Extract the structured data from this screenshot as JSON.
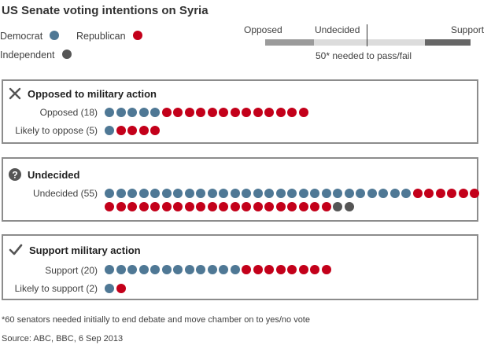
{
  "title": "US Senate voting intentions on Syria",
  "legend": [
    {
      "label": "Democrat",
      "color": "#4f7895"
    },
    {
      "label": "Republican",
      "color": "#c3001a"
    },
    {
      "label": "Independent",
      "color": "#555555"
    }
  ],
  "scale": {
    "opposed_label": "Opposed",
    "undecided_label": "Undecided",
    "support_label": "Support",
    "threshold_label": "50* needed to pass/fail",
    "colors": {
      "opposed": "#9b9b9b",
      "undecided": "#dcdcdc",
      "support": "#666666"
    }
  },
  "panels": [
    {
      "title": "Opposed to military action",
      "icon": "cross-icon"
    },
    {
      "title": "Undecided",
      "icon": "question-icon"
    },
    {
      "title": "Support military action",
      "icon": "check-icon"
    }
  ],
  "chart_data": {
    "type": "dot-matrix",
    "title": "US Senate voting intentions on Syria",
    "rows": [
      {
        "label": "Opposed (18)",
        "democrat": 5,
        "republican": 13,
        "independent": 0
      },
      {
        "label": "Likely to oppose (5)",
        "democrat": 1,
        "republican": 4,
        "independent": 0
      },
      {
        "label": "Undecided (55)",
        "democrat": 27,
        "republican": 26,
        "independent": 2
      },
      {
        "label": "Support (20)",
        "democrat": 12,
        "republican": 8,
        "independent": 0
      },
      {
        "label": "Likely to support (2)",
        "democrat": 1,
        "republican": 1,
        "independent": 0
      }
    ]
  },
  "footnote": "*60 senators needed initially to end debate and move chamber on to yes/no vote",
  "source": "Source: ABC, BBC, 6 Sep 2013"
}
